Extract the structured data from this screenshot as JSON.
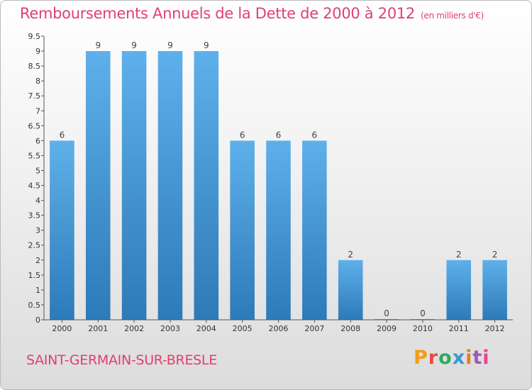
{
  "header": {
    "title": "Remboursements Annuels de la Dette de 2000 à 2012",
    "unit": "(en milliers d'€)"
  },
  "footer": {
    "commune": "SAINT-GERMAIN-SUR-BRESLE",
    "brand": "Proxiti"
  },
  "colors": {
    "title": "#e0406e",
    "bar_top": "#5eb0ea",
    "bar_bottom": "#2d7ab8",
    "brand_letters": [
      "#f39c12",
      "#e74c3c",
      "#27ae60",
      "#3498db",
      "#e67e22",
      "#9b59b6",
      "#e84393"
    ]
  },
  "chart_data": {
    "type": "bar",
    "title": "Remboursements Annuels de la Dette de 2000 à 2012",
    "subtitle": "(en milliers d'€)",
    "categories": [
      "2000",
      "2001",
      "2002",
      "2003",
      "2004",
      "2005",
      "2006",
      "2007",
      "2008",
      "2009",
      "2010",
      "2011",
      "2012"
    ],
    "values": [
      6,
      9,
      9,
      9,
      9,
      6,
      6,
      6,
      2,
      0,
      0,
      2,
      2
    ],
    "data_labels": [
      "6",
      "9",
      "9",
      "9",
      "9",
      "6",
      "6",
      "6",
      "2",
      "0",
      "0",
      "2",
      "2"
    ],
    "ylim": [
      0,
      9.5
    ],
    "yticks": [
      "0",
      "0.5",
      "1",
      "1.5",
      "2",
      "2.5",
      "3",
      "3.5",
      "4",
      "4.5",
      "5",
      "5.5",
      "6",
      "6.5",
      "7",
      "7.5",
      "8",
      "8.5",
      "9",
      "9.5"
    ],
    "grid": false
  }
}
